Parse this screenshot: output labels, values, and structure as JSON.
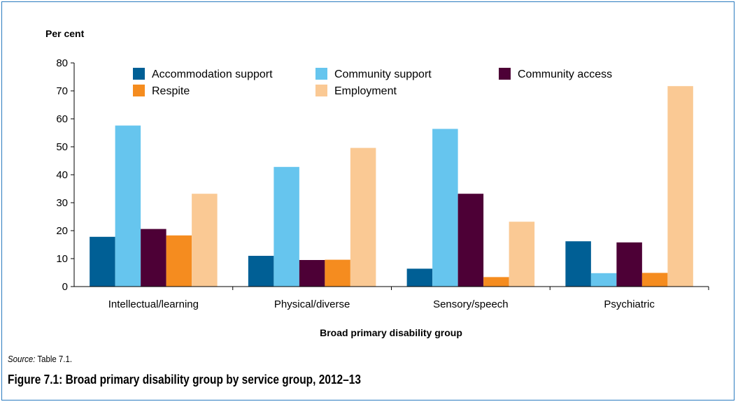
{
  "colors": {
    "frame": "#2a7bbf",
    "series": [
      "#005f95",
      "#66c5ee",
      "#4d0036",
      "#f58c1f",
      "#fac994"
    ]
  },
  "chart_data": {
    "type": "bar",
    "ylabel": "Per cent",
    "xlabel": "Broad primary disability group",
    "ylim": [
      0,
      80
    ],
    "yticks": [
      0,
      10,
      20,
      30,
      40,
      50,
      60,
      70,
      80
    ],
    "grid": false,
    "legend_position": "top",
    "categories": [
      "Intellectual/learning",
      "Physical/diverse",
      "Sensory/speech",
      "Psychiatric"
    ],
    "series": [
      {
        "name": "Accommodation support",
        "values": [
          17.8,
          11.0,
          6.4,
          16.2
        ]
      },
      {
        "name": "Community support",
        "values": [
          57.6,
          42.8,
          56.4,
          4.8
        ]
      },
      {
        "name": "Community access",
        "values": [
          20.6,
          9.5,
          33.2,
          15.8
        ]
      },
      {
        "name": "Respite",
        "values": [
          18.3,
          9.6,
          3.4,
          4.9
        ]
      },
      {
        "name": "Employment",
        "values": [
          33.2,
          49.6,
          23.2,
          71.7
        ]
      }
    ]
  },
  "source": {
    "label": "Source:",
    "text": " Table 7.1."
  },
  "caption": "Figure 7.1: Broad primary disability group by service group, 2012–13"
}
